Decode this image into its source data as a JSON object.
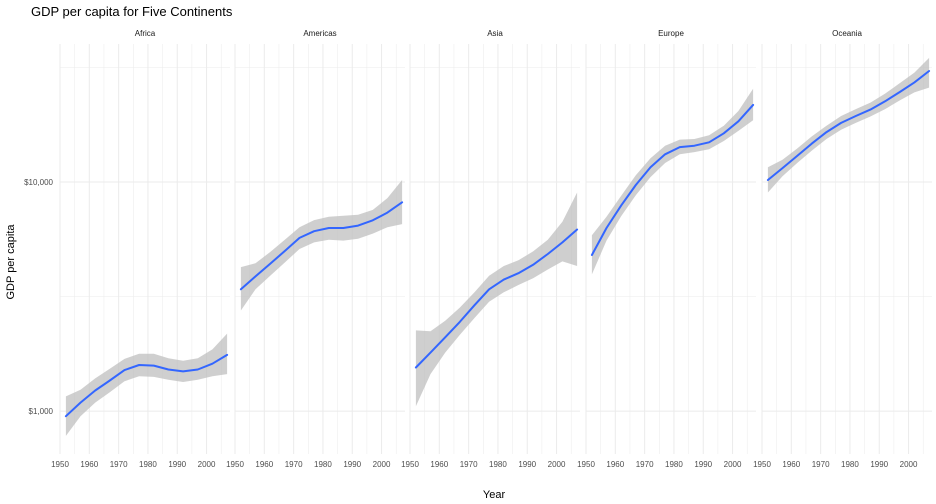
{
  "chart_data": {
    "type": "line",
    "title": "GDP per capita for Five Continents",
    "xlabel": "Year",
    "ylabel": "GDP per capita",
    "y_scale": "log10",
    "xlim": [
      1950,
      2008
    ],
    "ylim": [
      650,
      40000
    ],
    "x_ticks": [
      1950,
      1960,
      1970,
      1980,
      1990,
      2000
    ],
    "y_ticks": [
      1000,
      10000
    ],
    "y_tick_labels": [
      "$1,000",
      "$10,000"
    ],
    "grid": true,
    "colors": {
      "line": "#3366ff",
      "ribbon": "#bfbfbf",
      "grid": "#ebebeb"
    },
    "panels": [
      {
        "name": "Africa",
        "x": [
          1952,
          1957,
          1962,
          1967,
          1972,
          1977,
          1982,
          1987,
          1992,
          1997,
          2002,
          2007
        ],
        "y": [
          950,
          1090,
          1230,
          1360,
          1510,
          1590,
          1580,
          1520,
          1490,
          1520,
          1610,
          1760
        ],
        "lower": [
          780,
          950,
          1090,
          1210,
          1350,
          1420,
          1410,
          1370,
          1340,
          1370,
          1420,
          1450
        ],
        "upper": [
          1160,
          1240,
          1390,
          1530,
          1690,
          1780,
          1780,
          1700,
          1660,
          1700,
          1860,
          2180
        ]
      },
      {
        "name": "Americas",
        "x": [
          1952,
          1957,
          1962,
          1967,
          1972,
          1977,
          1982,
          1987,
          1992,
          1997,
          2002,
          2007
        ],
        "y": [
          3400,
          3870,
          4400,
          5000,
          5700,
          6100,
          6300,
          6300,
          6450,
          6800,
          7350,
          8150
        ],
        "lower": [
          2750,
          3400,
          3900,
          4450,
          5100,
          5450,
          5600,
          5550,
          5650,
          5950,
          6350,
          6550
        ],
        "upper": [
          4250,
          4420,
          4950,
          5600,
          6350,
          6820,
          7050,
          7120,
          7200,
          7550,
          8500,
          10200
        ]
      },
      {
        "name": "Asia",
        "x": [
          1952,
          1957,
          1962,
          1967,
          1972,
          1977,
          1982,
          1987,
          1992,
          1997,
          2002,
          2007
        ],
        "y": [
          1550,
          1800,
          2100,
          2450,
          2900,
          3400,
          3750,
          4000,
          4350,
          4850,
          5450,
          6200
        ],
        "lower": [
          1050,
          1450,
          1800,
          2150,
          2550,
          3000,
          3300,
          3550,
          3800,
          4150,
          4500,
          4300
        ],
        "upper": [
          2250,
          2230,
          2480,
          2830,
          3300,
          3900,
          4300,
          4550,
          4980,
          5600,
          6700,
          9000
        ]
      },
      {
        "name": "Europe",
        "x": [
          1952,
          1957,
          1962,
          1967,
          1972,
          1977,
          1982,
          1987,
          1992,
          1997,
          2002,
          2007
        ],
        "y": [
          4800,
          6300,
          7900,
          9700,
          11600,
          13200,
          14200,
          14400,
          14900,
          16300,
          18400,
          21700
        ],
        "lower": [
          3950,
          5550,
          7100,
          8750,
          10500,
          12100,
          13200,
          13500,
          13900,
          15100,
          16700,
          18600
        ],
        "upper": [
          5850,
          7050,
          8700,
          10700,
          12700,
          14400,
          15300,
          15400,
          16000,
          17600,
          20400,
          25500
        ]
      },
      {
        "name": "Oceania",
        "x": [
          1952,
          1957,
          1962,
          1967,
          1972,
          1977,
          1982,
          1987,
          1992,
          1997,
          2002,
          2007
        ],
        "y": [
          10200,
          11500,
          13000,
          14700,
          16500,
          18100,
          19400,
          20700,
          22500,
          24700,
          27200,
          30500
        ],
        "lower": [
          9000,
          10600,
          12100,
          13700,
          15400,
          16900,
          18100,
          19300,
          20800,
          22700,
          24600,
          25800
        ],
        "upper": [
          11600,
          12500,
          14000,
          15800,
          17600,
          19400,
          20800,
          22200,
          24300,
          27000,
          30000,
          34800
        ]
      }
    ]
  }
}
